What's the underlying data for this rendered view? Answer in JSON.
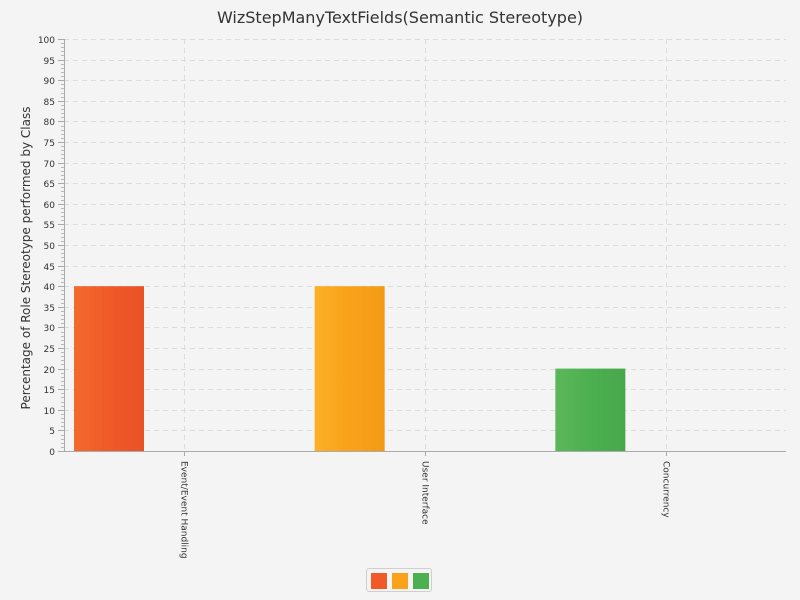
{
  "chart_data": {
    "type": "bar",
    "title": "WizStepManyTextFields(Semantic Stereotype)",
    "xlabel": "",
    "ylabel": "Percentage of Role Stereotype performed by Class",
    "ylim": [
      0,
      100
    ],
    "y_major_step": 5,
    "y_minor_step": 1,
    "grid": true,
    "categories": [
      "Event/Event Handling",
      "User Interface",
      "Concurrency"
    ],
    "values": [
      40,
      40,
      20
    ],
    "colors": [
      "#f05a28",
      "#f9a21a",
      "#4caf50"
    ],
    "legend": {
      "placement": "bottom-center",
      "entries": [
        {
          "name": "",
          "color": "#f05a28"
        },
        {
          "name": "",
          "color": "#f9a21a"
        },
        {
          "name": "",
          "color": "#4caf50"
        }
      ]
    }
  }
}
